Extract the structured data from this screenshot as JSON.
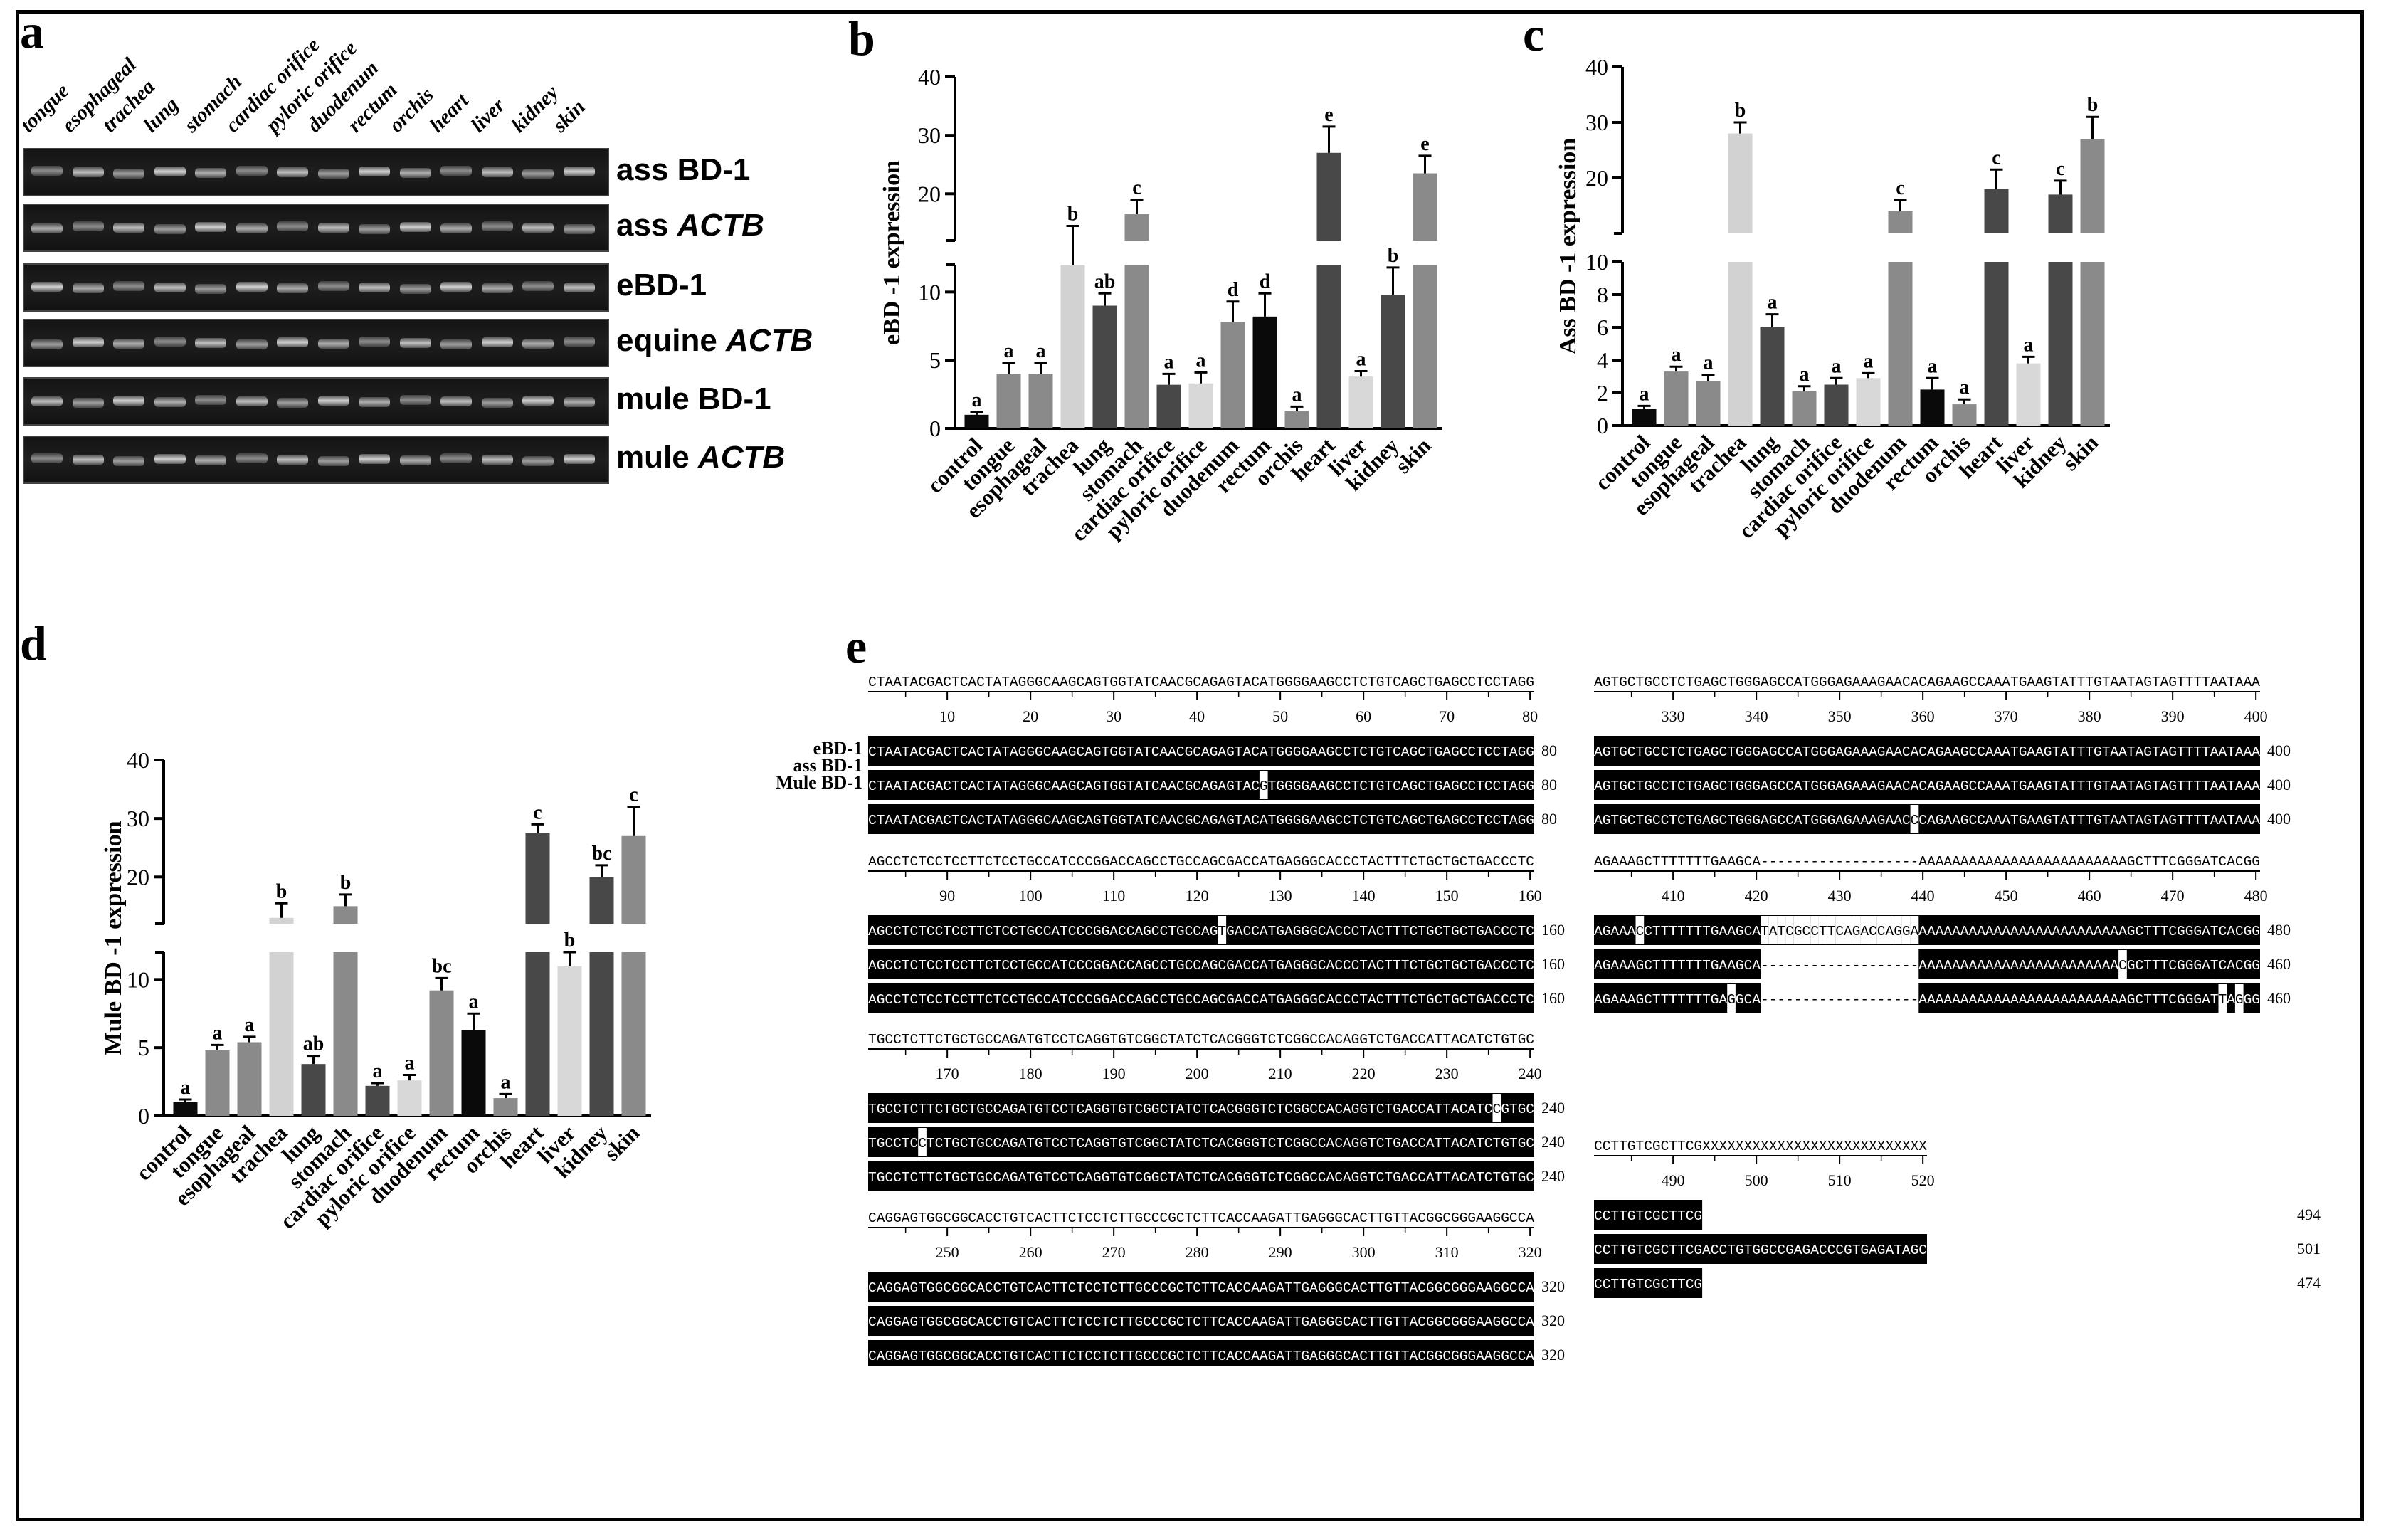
{
  "panels": {
    "a": "a",
    "b": "b",
    "c": "c",
    "d": "d",
    "e": "e"
  },
  "gel": {
    "lanes": [
      "tongue",
      "esophageal",
      "trachea",
      "lung",
      "stomach",
      "cardiac orifice",
      "pyloric orifice",
      "duodenum",
      "rectum",
      "orchis",
      "heart",
      "liver",
      "kidney",
      "skin"
    ],
    "rows": [
      {
        "pre": "ass BD-1",
        "ital": ""
      },
      {
        "pre": "ass ",
        "ital": "ACTB"
      },
      {
        "pre": "eBD-1",
        "ital": ""
      },
      {
        "pre": "equine ",
        "ital": "ACTB"
      },
      {
        "pre": "mule BD-1",
        "ital": ""
      },
      {
        "pre": "mule ",
        "ital": "ACTB"
      }
    ]
  },
  "chart_data": [
    {
      "panel": "b",
      "type": "bar",
      "ylabel": "eBD -1 expression",
      "categories": [
        "control",
        "tongue",
        "esophageal",
        "trachea",
        "lung",
        "stomach",
        "cardiac orifice",
        "pyloric orifice",
        "duodenum",
        "rectum",
        "orchis",
        "heart",
        "liver",
        "kidney",
        "skin"
      ],
      "values": [
        1.0,
        4.0,
        4.0,
        12.0,
        9.0,
        16.5,
        3.2,
        3.3,
        7.8,
        8.2,
        1.3,
        27.0,
        3.8,
        9.8,
        23.5
      ],
      "errors": [
        0.2,
        0.8,
        0.8,
        2.5,
        0.9,
        2.5,
        0.8,
        0.8,
        1.5,
        1.7,
        0.3,
        4.5,
        0.4,
        2.0,
        3.0
      ],
      "letters": [
        "a",
        "a",
        "a",
        "b",
        "ab",
        "c",
        "a",
        "a",
        "d",
        "d",
        "a",
        "e",
        "a",
        "b",
        "e"
      ],
      "yticks_low": [
        0,
        5,
        10
      ],
      "yticks_high": [
        20,
        30,
        40
      ],
      "ylim_low": [
        0,
        12
      ],
      "ylim_high": [
        12,
        40
      ],
      "colors": [
        "#0a0a0a",
        "#8a8a8a",
        "#8a8a8a",
        "#d2d2d2",
        "#484848",
        "#8a8a8a",
        "#484848",
        "#d8d8d8",
        "#8a8a8a",
        "#0a0a0a",
        "#8a8a8a",
        "#484848",
        "#d8d8d8",
        "#484848",
        "#8a8a8a"
      ]
    },
    {
      "panel": "c",
      "type": "bar",
      "ylabel": "Ass BD -1 expression",
      "categories": [
        "control",
        "tongue",
        "esophageal",
        "trachea",
        "lung",
        "stomach",
        "cardiac orifice",
        "pyloric orifice",
        "duodenum",
        "rectum",
        "orchis",
        "heart",
        "liver",
        "kidney",
        "skin"
      ],
      "values": [
        1.0,
        3.3,
        2.7,
        28.0,
        6.0,
        2.1,
        2.5,
        2.9,
        14.0,
        2.2,
        1.3,
        18.0,
        3.8,
        17.0,
        27.0
      ],
      "errors": [
        0.2,
        0.3,
        0.4,
        2.0,
        0.8,
        0.3,
        0.4,
        0.3,
        2.0,
        0.7,
        0.3,
        3.5,
        0.4,
        2.5,
        4.0
      ],
      "letters": [
        "a",
        "a",
        "a",
        "b",
        "a",
        "a",
        "a",
        "a",
        "c",
        "a",
        "a",
        "c",
        "a",
        "c",
        "b"
      ],
      "yticks_low": [
        0,
        2,
        4,
        6,
        8,
        10
      ],
      "yticks_high": [
        20,
        30,
        40
      ],
      "ylim_low": [
        0,
        10
      ],
      "ylim_high": [
        10,
        40
      ],
      "colors": [
        "#0a0a0a",
        "#8a8a8a",
        "#8a8a8a",
        "#d2d2d2",
        "#484848",
        "#8a8a8a",
        "#484848",
        "#d8d8d8",
        "#8a8a8a",
        "#0a0a0a",
        "#8a8a8a",
        "#484848",
        "#d8d8d8",
        "#484848",
        "#8a8a8a"
      ]
    },
    {
      "panel": "d",
      "type": "bar",
      "ylabel": "Mule BD -1 expression",
      "categories": [
        "control",
        "tongue",
        "esophageal",
        "trachea",
        "lung",
        "stomach",
        "cardiac orifice",
        "pyloric orifice",
        "duodenum",
        "rectum",
        "orchis",
        "heart",
        "liver",
        "kidney",
        "skin"
      ],
      "values": [
        1.0,
        4.8,
        5.4,
        13.0,
        3.8,
        15.0,
        2.2,
        2.6,
        9.2,
        6.3,
        1.3,
        27.5,
        11.0,
        20.0,
        27.0
      ],
      "errors": [
        0.2,
        0.4,
        0.4,
        2.5,
        0.6,
        2.0,
        0.2,
        0.4,
        0.9,
        1.2,
        0.3,
        1.5,
        1.0,
        2.0,
        5.0
      ],
      "letters": [
        "a",
        "a",
        "a",
        "b",
        "ab",
        "b",
        "a",
        "a",
        "bc",
        "a",
        "a",
        "c",
        "b",
        "bc",
        "c"
      ],
      "yticks_low": [
        0,
        5,
        10
      ],
      "yticks_high": [
        20,
        30,
        40
      ],
      "ylim_low": [
        0,
        12
      ],
      "ylim_high": [
        12,
        40
      ],
      "colors": [
        "#0a0a0a",
        "#8a8a8a",
        "#8a8a8a",
        "#d2d2d2",
        "#484848",
        "#8a8a8a",
        "#484848",
        "#d8d8d8",
        "#8a8a8a",
        "#0a0a0a",
        "#8a8a8a",
        "#484848",
        "#d8d8d8",
        "#484848",
        "#8a8a8a"
      ]
    }
  ],
  "alignment": {
    "seq_names": [
      "eBD-1",
      "ass BD-1",
      "Mule BD-1"
    ],
    "blocks": [
      {
        "consensus": "CTAATACGACTCACTATAGGGCAAGCAGTGGTATCAACGCAGAGTACATGGGGAAGCCTCTGTCAGCTGAGCCTCCTAGG",
        "ticks": [
          "10",
          "20",
          "30",
          "40",
          "50",
          "60",
          "70",
          "80"
        ],
        "rows": [
          "CTAATACGACTCACTATAGGGCAAGCAGTGGTATCAACGCAGAGTACATGGGGAAGCCTCTGTCAGCTGAGCCTCCTAGG",
          "CTAATACGACTCACTATAGGGCAAGCAGTGGTATCAACGCAGAGTACGTGGGGAAGCCTCTGTCAGCTGAGCCTCCTAGG",
          "CTAATACGACTCACTATAGGGCAAGCAGTGGTATCAACGCAGAGTACATGGGGAAGCCTCTGTCAGCTGAGCCTCCTAGG"
        ],
        "ends": [
          "80",
          "80",
          "80"
        ]
      },
      {
        "consensus": "AGCCTCTCCTCCTTCTCCTGCCATCCCGGACCAGCCTGCCAGCGACCATGAGGGCACCCTACTTTCTGCTGCTGACCCTC",
        "ticks": [
          "90",
          "100",
          "110",
          "120",
          "130",
          "140",
          "150",
          "160"
        ],
        "rows": [
          "AGCCTCTCCTCCTTCTCCTGCCATCCCGGACCAGCCTGCCAGTGACCATGAGGGCACCCTACTTTCTGCTGCTGACCCTC",
          "AGCCTCTCCTCCTTCTCCTGCCATCCCGGACCAGCCTGCCAGCGACCATGAGGGCACCCTACTTTCTGCTGCTGACCCTC",
          "AGCCTCTCCTCCTTCTCCTGCCATCCCGGACCAGCCTGCCAGCGACCATGAGGGCACCCTACTTTCTGCTGCTGACCCTC"
        ],
        "ends": [
          "160",
          "160",
          "160"
        ]
      },
      {
        "consensus": "TGCCTCTTCTGCTGCCAGATGTCCTCAGGTGTCGGCTATCTCACGGGTCTCGGCCACAGGTCTGACCATTACATCTGTGC",
        "ticks": [
          "170",
          "180",
          "190",
          "200",
          "210",
          "220",
          "230",
          "240"
        ],
        "rows": [
          "TGCCTCTTCTGCTGCCAGATGTCCTCAGGTGTCGGCTATCTCACGGGTCTCGGCCACAGGTCTGACCATTACATCCGTGC",
          "TGCCTCCTCTGCTGCCAGATGTCCTCAGGTGTCGGCTATCTCACGGGTCTCGGCCACAGGTCTGACCATTACATCTGTGC",
          "TGCCTCTTCTGCTGCCAGATGTCCTCAGGTGTCGGCTATCTCACGGGTCTCGGCCACAGGTCTGACCATTACATCTGTGC"
        ],
        "ends": [
          "240",
          "240",
          "240"
        ]
      },
      {
        "consensus": "CAGGAGTGGCGGCACCTGTCACTTCTCCTCTTGCCCGCTCTTCACCAAGATTGAGGGCACTTGTTACGGCGGGAAGGCCA",
        "ticks": [
          "250",
          "260",
          "270",
          "280",
          "290",
          "300",
          "310",
          "320"
        ],
        "rows": [
          "CAGGAGTGGCGGCACCTGTCACTTCTCCTCTTGCCCGCTCTTCACCAAGATTGAGGGCACTTGTTACGGCGGGAAGGCCA",
          "CAGGAGTGGCGGCACCTGTCACTTCTCCTCTTGCCCGCTCTTCACCAAGATTGAGGGCACTTGTTACGGCGGGAAGGCCA",
          "CAGGAGTGGCGGCACCTGTCACTTCTCCTCTTGCCCGCTCTTCACCAAGATTGAGGGCACTTGTTACGGCGGGAAGGCCA"
        ],
        "ends": [
          "320",
          "320",
          "320"
        ]
      },
      {
        "consensus": "AGTGCTGCCTCTGAGCTGGGAGCCATGGGAGAAAGAACACAGAAGCCAAATGAAGTATTTGTAATAGTAGTTTTAATAAA",
        "ticks": [
          "330",
          "340",
          "350",
          "360",
          "370",
          "380",
          "390",
          "400"
        ],
        "rows": [
          "AGTGCTGCCTCTGAGCTGGGAGCCATGGGAGAAAGAACACAGAAGCCAAATGAAGTATTTGTAATAGTAGTTTTAATAAA",
          "AGTGCTGCCTCTGAGCTGGGAGCCATGGGAGAAAGAACACAGAAGCCAAATGAAGTATTTGTAATAGTAGTTTTAATAAA",
          "AGTGCTGCCTCTGAGCTGGGAGCCATGGGAGAAAGAACCCAGAAGCCAAATGAAGTATTTGTAATAGTAGTTTTAATAAA"
        ],
        "ends": [
          "400",
          "400",
          "400"
        ]
      },
      {
        "consensus": "AGAAAGCTTTTTTTGAAGCA-------------------AAAAAAAAAAAAAAAAAAAAAAAAAGCTTTCGGGATCACGG",
        "ticks": [
          "410",
          "420",
          "430",
          "440",
          "450",
          "460",
          "470",
          "480"
        ],
        "rows": [
          "AGAAACCTTTTTTTGAAGCATATCGCCTTCAGACCAGGAAAAAAAAAAAAAAAAAAAAAAAAAAGCTTTCGGGATCACGG",
          "AGAAAGCTTTTTTTGAAGCA-------------------AAAAAAAAAAAAAAAAAAAAAAAACGCTTTCGGGATCACGG",
          "AGAAAGCTTTTTTTGAGGCA-------------------AAAAAAAAAAAAAAAAAAAAAAAAAGCTTTCGGGATTAGGG"
        ],
        "ends": [
          "480",
          "460",
          "460"
        ]
      },
      {
        "consensus": "CCTTGTCGCTTCGXXXXXXXXXXXXXXXXXXXXXXXXXXX",
        "ticks": [
          "490",
          "500",
          "510",
          "520"
        ],
        "rows": [
          "CCTTGTCGCTTCG",
          "CCTTGTCGCTTCGACCTGTGGCCGAGACCCGTGAGATAGC",
          "CCTTGTCGCTTCG"
        ],
        "ends": [
          "494",
          "501",
          "474"
        ]
      }
    ]
  }
}
